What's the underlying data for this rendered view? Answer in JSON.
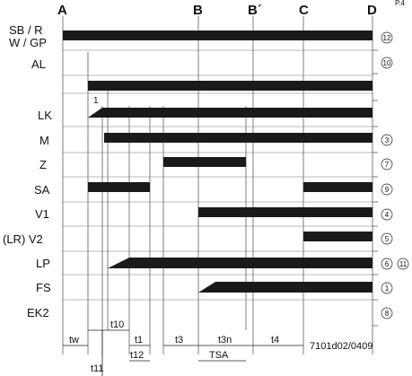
{
  "phases": [
    "A",
    "B",
    "B´",
    "C",
    "D"
  ],
  "rows": [
    {
      "label": "SB / R",
      "circles": [
        "12"
      ]
    },
    {
      "label": "W / GP",
      "circles": []
    },
    {
      "label": "AL",
      "circles": [
        "10"
      ]
    },
    {
      "label": "",
      "circles": []
    },
    {
      "label": "LK",
      "circles": []
    },
    {
      "label": "M",
      "circles": [
        "3"
      ]
    },
    {
      "label": "Z",
      "circles": [
        "7"
      ]
    },
    {
      "label": "SA",
      "circles": [
        "9"
      ]
    },
    {
      "label": "V1",
      "circles": [
        "4"
      ]
    },
    {
      "label": "(LR) V2",
      "circles": [
        "5"
      ]
    },
    {
      "label": "LP",
      "circles": [
        "6",
        "11"
      ]
    },
    {
      "label": "FS",
      "circles": [
        "1"
      ]
    },
    {
      "label": "EK2",
      "circles": [
        "8"
      ]
    }
  ],
  "marker_one": "1",
  "time_labels": {
    "tw": "tw",
    "t10": "t10",
    "t1": "t1",
    "t12": "t12",
    "t3": "t3",
    "t3n": "t3n",
    "TSA": "TSA",
    "t4": "t4",
    "t11": "t11"
  },
  "reference": "7101d02/0409",
  "corner_mark": "P.4"
}
